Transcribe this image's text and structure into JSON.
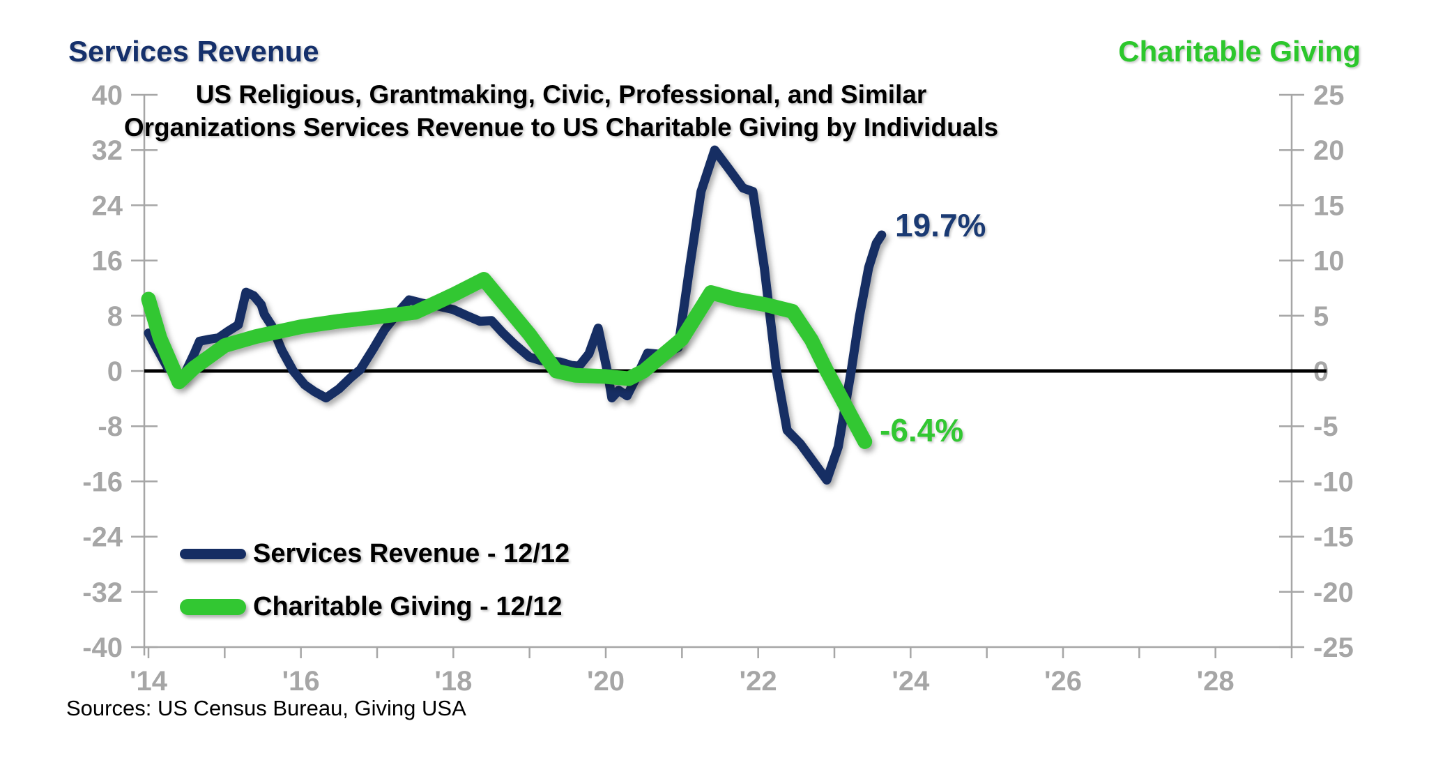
{
  "header": {
    "left_axis_title": "Services Revenue",
    "right_axis_title": "Charitable Giving"
  },
  "title": {
    "line1": "US Religious, Grantmaking, Civic, Professional, and Similar",
    "line2": "Organizations Services Revenue to US Charitable Giving by Individuals"
  },
  "legend": [
    {
      "label": "Services Revenue - 12/12",
      "color": "#152d63"
    },
    {
      "label": "Charitable Giving - 12/12",
      "color": "#32c732"
    }
  ],
  "annotations": [
    {
      "text": "19.7%",
      "series": "Services Revenue",
      "color": "#1a3a73"
    },
    {
      "text": "-6.4%",
      "series": "Charitable Giving",
      "color": "#32c732"
    }
  ],
  "source": "Sources: US Census Bureau, Giving USA",
  "colors": {
    "navy": "#152d63",
    "green": "#32c732",
    "axis_gray": "#a6a6a6",
    "zero_line": "#000000"
  },
  "chart_data": {
    "type": "line",
    "title": "US Religious, Grantmaking, Civic, Professional, and Similar Organizations Services Revenue to US Charitable Giving by Individuals",
    "x_axis": {
      "range": [
        2014,
        2029
      ],
      "major_tick_labels": [
        "'14",
        "'16",
        "'18",
        "'20",
        "'22",
        "'24",
        "'26",
        "'28"
      ],
      "major_tick_years": [
        2014,
        2016,
        2018,
        2020,
        2022,
        2024,
        2026,
        2028
      ],
      "minor_tick_every_years": 1
    },
    "left_axis": {
      "title": "Services Revenue",
      "ticks": [
        40,
        32,
        24,
        16,
        8,
        0,
        -8,
        -16,
        -24,
        -32,
        -40
      ],
      "range": [
        -40,
        40
      ],
      "unit": "% change (12/12 rate)"
    },
    "right_axis": {
      "title": "Charitable Giving",
      "ticks": [
        25,
        20,
        15,
        10,
        5,
        0,
        -5,
        -10,
        -15,
        -20,
        -25
      ],
      "range": [
        -25,
        25
      ],
      "unit": "% change (12/12 rate)"
    },
    "grid": false,
    "legend_position": "bottom-left-inside",
    "series": [
      {
        "name": "Services Revenue - 12/12",
        "axis": "left",
        "color": "#152d63",
        "stroke_width": 13,
        "end_label": "19.7%",
        "points": [
          [
            2014.0,
            5.5
          ],
          [
            2014.1,
            3.5
          ],
          [
            2014.25,
            0.5
          ],
          [
            2014.45,
            -1.0
          ],
          [
            2014.6,
            2.5
          ],
          [
            2014.67,
            4.3
          ],
          [
            2014.8,
            4.6
          ],
          [
            2014.92,
            4.8
          ],
          [
            2015.05,
            5.8
          ],
          [
            2015.18,
            6.7
          ],
          [
            2015.28,
            11.4
          ],
          [
            2015.38,
            10.9
          ],
          [
            2015.48,
            9.6
          ],
          [
            2015.52,
            8.2
          ],
          [
            2015.62,
            6.5
          ],
          [
            2015.75,
            3.0
          ],
          [
            2015.9,
            0.0
          ],
          [
            2016.05,
            -2.0
          ],
          [
            2016.18,
            -3.0
          ],
          [
            2016.33,
            -3.9
          ],
          [
            2016.5,
            -2.6
          ],
          [
            2016.65,
            -1.0
          ],
          [
            2016.78,
            0.2
          ],
          [
            2016.95,
            3.2
          ],
          [
            2017.1,
            6.0
          ],
          [
            2017.3,
            8.8
          ],
          [
            2017.42,
            10.3
          ],
          [
            2017.6,
            9.8
          ],
          [
            2017.8,
            9.4
          ],
          [
            2018.0,
            8.9
          ],
          [
            2018.2,
            7.9
          ],
          [
            2018.35,
            7.2
          ],
          [
            2018.5,
            7.3
          ],
          [
            2018.65,
            5.5
          ],
          [
            2018.8,
            3.9
          ],
          [
            2019.0,
            2.0
          ],
          [
            2019.15,
            1.5
          ],
          [
            2019.4,
            1.3
          ],
          [
            2019.55,
            0.8
          ],
          [
            2019.65,
            0.7
          ],
          [
            2019.78,
            2.5
          ],
          [
            2019.9,
            6.2
          ],
          [
            2020.02,
            0.0
          ],
          [
            2020.08,
            -3.9
          ],
          [
            2020.17,
            -2.8
          ],
          [
            2020.28,
            -3.6
          ],
          [
            2020.42,
            -0.5
          ],
          [
            2020.55,
            2.6
          ],
          [
            2020.72,
            2.4
          ],
          [
            2020.85,
            2.9
          ],
          [
            2020.95,
            3.4
          ],
          [
            2021.1,
            15.0
          ],
          [
            2021.25,
            26.0
          ],
          [
            2021.43,
            32.0
          ],
          [
            2021.6,
            29.5
          ],
          [
            2021.8,
            26.5
          ],
          [
            2021.93,
            26.0
          ],
          [
            2022.08,
            15.0
          ],
          [
            2022.24,
            0.0
          ],
          [
            2022.38,
            -8.6
          ],
          [
            2022.55,
            -10.5
          ],
          [
            2022.9,
            -15.8
          ],
          [
            2023.05,
            -11.0
          ],
          [
            2023.22,
            0.0
          ],
          [
            2023.33,
            8.0
          ],
          [
            2023.45,
            15.0
          ],
          [
            2023.55,
            18.5
          ],
          [
            2023.62,
            19.7
          ]
        ]
      },
      {
        "name": "Charitable Giving - 12/12",
        "axis": "right",
        "color": "#32c732",
        "stroke_width": 21,
        "end_label": "-6.4%",
        "points": [
          [
            2014.0,
            6.5
          ],
          [
            2014.15,
            3.0
          ],
          [
            2014.4,
            -1.0
          ],
          [
            2014.6,
            0.3
          ],
          [
            2015.0,
            2.3
          ],
          [
            2015.4,
            3.1
          ],
          [
            2016.0,
            4.0
          ],
          [
            2016.5,
            4.5
          ],
          [
            2017.0,
            4.9
          ],
          [
            2017.5,
            5.3
          ],
          [
            2018.0,
            6.9
          ],
          [
            2018.4,
            8.3
          ],
          [
            2018.7,
            5.8
          ],
          [
            2019.0,
            3.3
          ],
          [
            2019.35,
            0.0
          ],
          [
            2019.6,
            -0.4
          ],
          [
            2020.0,
            -0.5
          ],
          [
            2020.3,
            -0.7
          ],
          [
            2020.5,
            0.0
          ],
          [
            2021.0,
            2.9
          ],
          [
            2021.38,
            7.1
          ],
          [
            2021.7,
            6.5
          ],
          [
            2022.1,
            6.0
          ],
          [
            2022.45,
            5.4
          ],
          [
            2022.7,
            2.8
          ],
          [
            2022.9,
            0.0
          ],
          [
            2023.4,
            -6.4
          ]
        ]
      }
    ]
  }
}
